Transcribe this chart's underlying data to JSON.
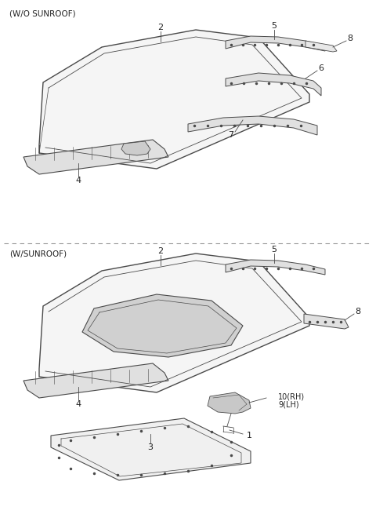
{
  "title_top": "(W/O SUNROOF)",
  "title_bottom": "(W/SUNROOF)",
  "bg_color": "#ffffff",
  "line_color": "#4a4a4a",
  "label_color": "#222222",
  "dashed_line_color": "#999999",
  "font_size_label": 8,
  "font_size_title": 7.5,
  "fig_width": 4.8,
  "fig_height": 6.46,
  "dpi": 100
}
